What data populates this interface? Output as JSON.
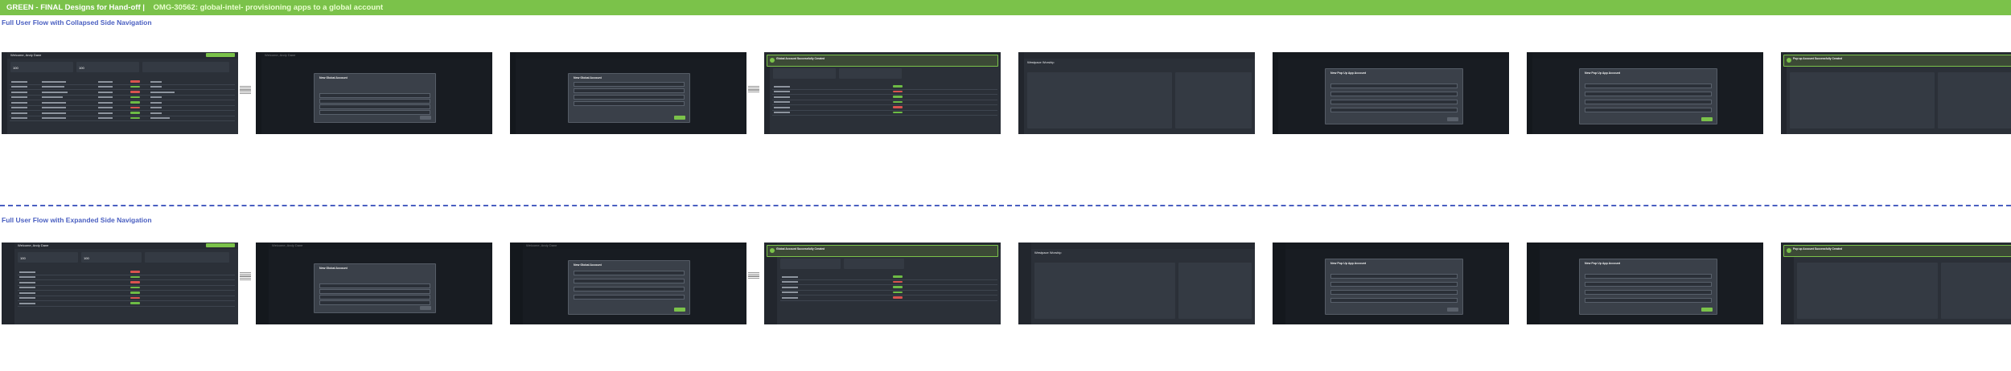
{
  "banner": {
    "prefix": "GREEN - FINAL Designs for Hand-off |",
    "ticket": "OMG-30562: global-intel- provisioning apps to a global account"
  },
  "sections": {
    "collapsed": "Full User Flow with Collapsed Side Navigation",
    "expanded": "Full User Flow with Expanded Side Navigation"
  },
  "screens": {
    "welcome": "Welcome, Andy Dane",
    "metric_value": "100",
    "modal_new_global": "New Global Account",
    "modal_new_popup": "New Pop Up App Account",
    "toast_title": "Global Account Successfully Created",
    "toast_popup": "Pop up Account Successfully Created",
    "account_title": "Westpace Worship"
  },
  "colors": {
    "accent": "#7bc24a",
    "section": "#4a5fc1",
    "frame": "#2b3038"
  }
}
